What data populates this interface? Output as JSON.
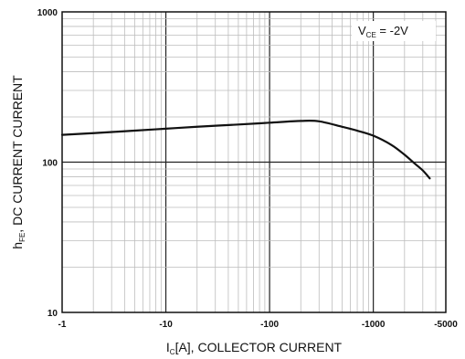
{
  "chart_data": {
    "type": "line",
    "title": "",
    "xlabel": "I",
    "xlabel_sub": "C",
    "xlabel_rest": "[A], COLLECTOR CURRENT",
    "ylabel": "h",
    "ylabel_sub": "FE",
    "ylabel_rest": ", DC CURRENT CURRENT",
    "x_scale": "log",
    "y_scale": "log",
    "xlim": [
      1,
      5000
    ],
    "ylim": [
      10,
      1000
    ],
    "x_ticks": [
      {
        "value": 1,
        "label": "-1"
      },
      {
        "value": 10,
        "label": "-10"
      },
      {
        "value": 100,
        "label": "-100"
      },
      {
        "value": 1000,
        "label": "-1000"
      },
      {
        "value": 5000,
        "label": "-5000"
      }
    ],
    "y_ticks": [
      {
        "value": 10,
        "label": "10"
      },
      {
        "value": 100,
        "label": "100"
      },
      {
        "value": 1000,
        "label": "1000"
      }
    ],
    "grid": true,
    "annotation": {
      "main": "V",
      "sub": "CE",
      "rest": " = -2V",
      "placement": "top-right"
    },
    "series": [
      {
        "x": [
          1,
          2,
          5,
          10,
          20,
          50,
          100,
          200,
          300,
          500,
          700,
          1000,
          1500,
          2000,
          2500,
          3000,
          3500
        ],
        "y": [
          152,
          156,
          162,
          167,
          172,
          178,
          183,
          188,
          187,
          172,
          162,
          150,
          130,
          112,
          98,
          88,
          78
        ]
      }
    ]
  }
}
